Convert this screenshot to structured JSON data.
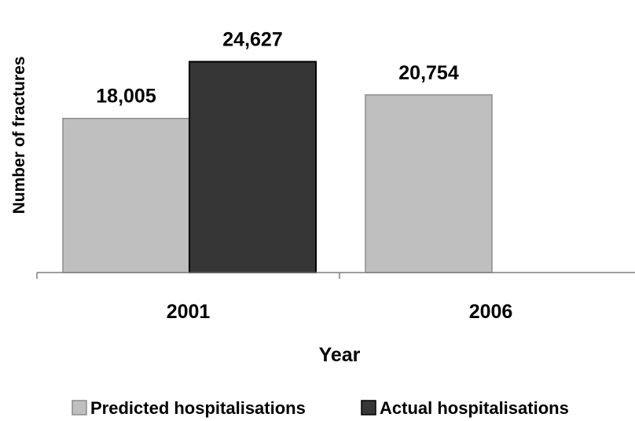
{
  "chart_data": {
    "type": "bar",
    "categories": [
      "2001",
      "2006"
    ],
    "series": [
      {
        "name": "Predicted hospitalisations",
        "values": [
          18005,
          20754
        ],
        "color": "#bfbfbf"
      },
      {
        "name": "Actual hospitalisations",
        "values": [
          24627,
          null
        ],
        "color": "#363636"
      }
    ],
    "data_labels": [
      [
        "18,005",
        "20,754"
      ],
      [
        "24,627",
        ""
      ]
    ],
    "xlabel": "Year",
    "ylabel": "Number of fractures",
    "ylim": [
      0,
      30000
    ],
    "grid": false,
    "legend_position": "bottom"
  }
}
